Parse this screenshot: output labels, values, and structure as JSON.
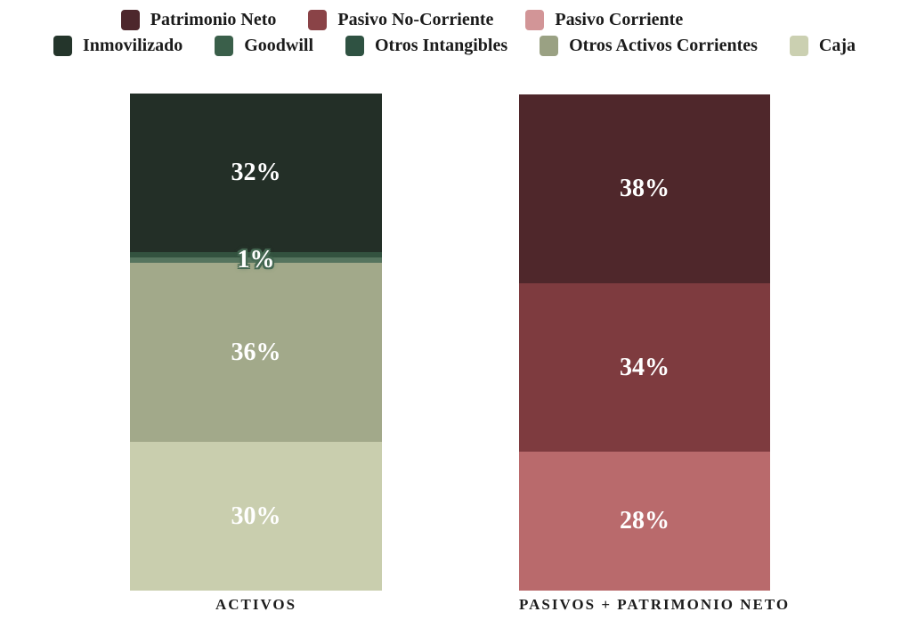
{
  "chart_data": {
    "type": "bar",
    "subtype": "100%-stacked-column",
    "orientation": "vertical",
    "grid": false,
    "value_format": "percent",
    "ylim": [
      0,
      100
    ],
    "categories": [
      "ACTIVOS",
      "PASIVOS + PATRIMONIO NETO"
    ],
    "legend": {
      "position": "top",
      "rows": [
        {
          "items": [
            {
              "label": "Patrimonio Neto",
              "color": "#4D272C"
            },
            {
              "label": "Pasivo No-Corriente",
              "color": "#8A4347"
            },
            {
              "label": "Pasivo Corriente",
              "color": "#D29597"
            }
          ]
        },
        {
          "items": [
            {
              "label": "Inmovilizado",
              "color": "#24352B"
            },
            {
              "label": "Goodwill",
              "color": "#3A5F4A"
            },
            {
              "label": "Otros Intangibles",
              "color": "#2F5242"
            },
            {
              "label": "Otros Activos Corrientes",
              "color": "#9AA183"
            },
            {
              "label": "Caja",
              "color": "#CBD0B1"
            }
          ]
        }
      ]
    },
    "bars": [
      {
        "category": "ACTIVOS",
        "segments": [
          {
            "name": "Inmovilizado",
            "value": 32,
            "label": "32%",
            "color": "#232F27"
          },
          {
            "name": "Goodwill",
            "value": 1,
            "label": "",
            "color": "#33523F"
          },
          {
            "name": "Otros Intangibles",
            "value": 1,
            "label": "1%",
            "color": "#55745E",
            "outlined_label": true
          },
          {
            "name": "Otros Activos Corrientes",
            "value": 36,
            "label": "36%",
            "color": "#A2A98A"
          },
          {
            "name": "Caja",
            "value": 30,
            "label": "30%",
            "color": "#C9CEAE"
          }
        ]
      },
      {
        "category": "PASIVOS + PATRIMONIO NETO",
        "segments": [
          {
            "name": "Patrimonio Neto",
            "value": 38,
            "label": "38%",
            "color": "#4F272B"
          },
          {
            "name": "Pasivo No-Corriente",
            "value": 34,
            "label": "34%",
            "color": "#7E3B3F"
          },
          {
            "name": "Pasivo Corriente",
            "value": 28,
            "label": "28%",
            "color": "#B96A6C"
          }
        ]
      }
    ]
  }
}
